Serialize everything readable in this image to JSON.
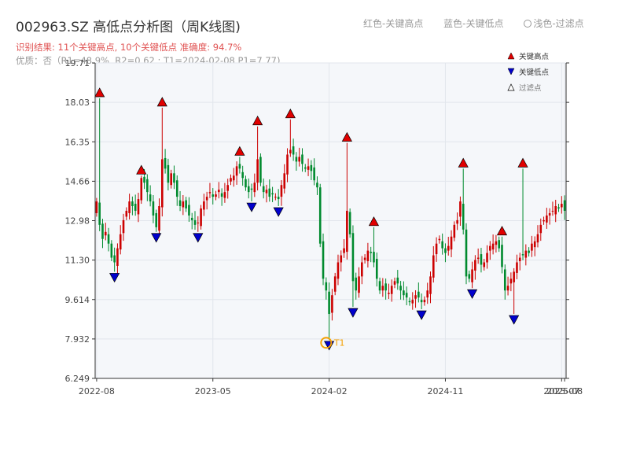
{
  "header": {
    "title": "002963.SZ 高低点分析图（周K线图)",
    "result_line": "识别结果: 11个关键高点, 10个关键低点  准确度: 94.7%",
    "quality_line": "优质：否（R1=48.9%, R2=0.62 ; T1=2024-02-08 P1=7.77)"
  },
  "top_legend": {
    "red": "红色-关键高点",
    "blue": "蓝色-关键低点",
    "light": "浅色-过滤点"
  },
  "legend": {
    "high": "关键高点",
    "low": "关键低点",
    "filtered": "过滤点"
  },
  "chart_data": {
    "type": "candlestick",
    "y_ticks": [
      "6.249",
      "7.932",
      "9.614",
      "11.30",
      "12.98",
      "14.66",
      "16.35",
      "18.03",
      "19.71"
    ],
    "ylim": [
      6.249,
      19.71
    ],
    "x_ticks": [
      "2022-08",
      "2023-05",
      "2024-02",
      "2024-11",
      "2025-07",
      "2025-08"
    ],
    "x_tick_weeks": [
      0,
      39,
      78,
      117,
      156,
      157
    ],
    "n_weeks": 158,
    "grid": true,
    "up_color": "#cc0000",
    "down_color": "#008a2e",
    "high_color": "#e00000",
    "low_color": "#0000cc",
    "t1": {
      "label": "T1",
      "date": "2024-02-08",
      "price": 7.77,
      "week": 77,
      "color": "#f5a000"
    },
    "key_highs": [
      {
        "week": 1,
        "price": 18.2
      },
      {
        "week": 15,
        "price": 14.9
      },
      {
        "week": 22,
        "price": 17.8
      },
      {
        "week": 48,
        "price": 15.7
      },
      {
        "week": 54,
        "price": 17.0
      },
      {
        "week": 65,
        "price": 17.3
      },
      {
        "week": 84,
        "price": 16.3
      },
      {
        "week": 93,
        "price": 12.7
      },
      {
        "week": 123,
        "price": 15.2
      },
      {
        "week": 136,
        "price": 12.3
      },
      {
        "week": 143,
        "price": 15.2
      }
    ],
    "key_lows": [
      {
        "week": 6,
        "price": 10.8
      },
      {
        "week": 20,
        "price": 12.5
      },
      {
        "week": 34,
        "price": 12.5
      },
      {
        "week": 52,
        "price": 13.8
      },
      {
        "week": 61,
        "price": 13.6
      },
      {
        "week": 78,
        "price": 7.9
      },
      {
        "week": 86,
        "price": 9.3
      },
      {
        "week": 109,
        "price": 9.2
      },
      {
        "week": 126,
        "price": 10.1
      },
      {
        "week": 140,
        "price": 9.0
      }
    ],
    "closes": [
      13.8,
      12.8,
      12.2,
      12.5,
      12.0,
      11.4,
      11.2,
      11.8,
      12.4,
      13.0,
      13.4,
      13.8,
      13.6,
      13.4,
      13.9,
      14.8,
      14.6,
      14.2,
      13.8,
      13.2,
      12.7,
      13.6,
      15.6,
      15.2,
      14.6,
      15.0,
      14.6,
      14.0,
      13.6,
      13.8,
      13.5,
      13.2,
      13.0,
      12.8,
      12.9,
      13.5,
      13.8,
      14.0,
      14.2,
      14.0,
      14.1,
      14.3,
      14.0,
      14.2,
      14.5,
      14.8,
      14.9,
      15.3,
      15.2,
      14.8,
      14.4,
      14.2,
      14.3,
      14.6,
      15.6,
      14.6,
      14.2,
      14.3,
      14.0,
      14.1,
      14.0,
      13.9,
      14.5,
      15.0,
      15.8,
      16.0,
      15.8,
      15.5,
      15.7,
      15.4,
      15.2,
      15.3,
      15.1,
      14.7,
      14.4,
      12.0,
      10.5,
      10.0,
      9.0,
      9.8,
      10.6,
      11.2,
      11.5,
      11.8,
      13.4,
      12.4,
      10.4,
      10.0,
      10.6,
      11.2,
      11.4,
      11.7,
      11.6,
      11.2,
      10.5,
      10.0,
      10.2,
      10.0,
      9.9,
      10.2,
      10.4,
      10.3,
      10.0,
      9.8,
      9.7,
      9.5,
      9.6,
      9.8,
      9.7,
      9.5,
      9.6,
      10.0,
      10.6,
      11.5,
      12.0,
      12.2,
      11.8,
      11.6,
      11.9,
      12.3,
      12.8,
      13.0,
      13.8,
      12.6,
      10.6,
      10.5,
      10.9,
      11.3,
      11.4,
      11.1,
      11.2,
      11.6,
      11.9,
      12.0,
      12.1,
      11.8,
      11.0,
      10.0,
      10.2,
      10.5,
      10.8,
      11.2,
      11.4,
      11.5,
      11.7,
      11.6,
      12.0,
      12.1,
      12.4,
      12.8,
      13.0,
      13.2,
      13.3,
      13.4,
      13.6,
      13.5,
      13.7,
      13.4
    ]
  }
}
